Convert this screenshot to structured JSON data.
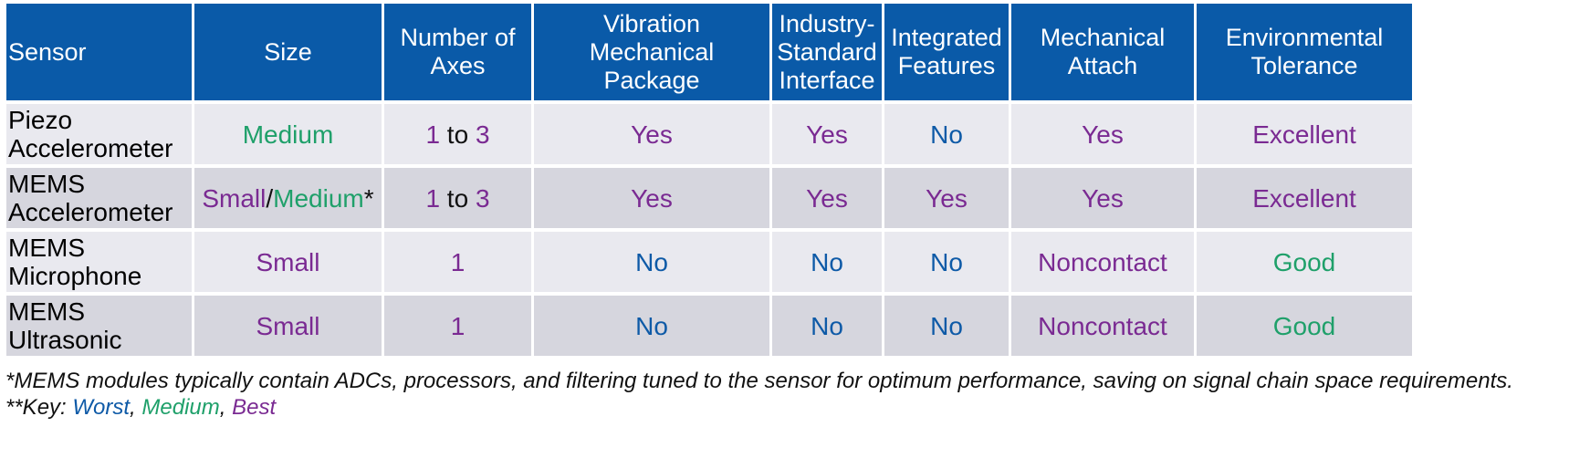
{
  "colors": {
    "header_bg": "#0a5aa8",
    "worst": "#0e5aa7",
    "medium": "#1fa06a",
    "best": "#7a2a92",
    "row_light": "#e9e9ef",
    "row_dark": "#d6d6de"
  },
  "header": {
    "sensor": "Sensor",
    "size": "Size",
    "axes_1": "Number of",
    "axes_2": "Axes",
    "vib_1": "Vibration Mechanical",
    "vib_2": "Package",
    "iface_1": "Industry-",
    "iface_2": "Standard",
    "iface_3": "Interface",
    "feat_1": "Integrated",
    "feat_2": "Features",
    "attach_1": "Mechanical",
    "attach_2": "Attach",
    "env_1": "Environmental",
    "env_2": "Tolerance"
  },
  "rows": [
    {
      "sensor_1": "Piezo",
      "sensor_2": "Accelerometer",
      "size_a": "Medium",
      "size_sep": "",
      "size_b": "",
      "size_star": "",
      "axes_a": "1",
      "axes_to": " to ",
      "axes_b": "3",
      "vib": "Yes",
      "iface": "Yes",
      "feat": "No",
      "attach": "Yes",
      "env": "Excellent"
    },
    {
      "sensor_1": "MEMS",
      "sensor_2": "Accelerometer",
      "size_a": "Small",
      "size_sep": "/",
      "size_b": "Medium",
      "size_star": "*",
      "axes_a": "1",
      "axes_to": " to ",
      "axes_b": "3",
      "vib": "Yes",
      "iface": "Yes",
      "feat": "Yes",
      "attach": "Yes",
      "env": "Excellent"
    },
    {
      "sensor_1": "MEMS",
      "sensor_2": "Microphone",
      "size_a": "Small",
      "size_sep": "",
      "size_b": "",
      "size_star": "",
      "axes_a": "1",
      "axes_to": "",
      "axes_b": "",
      "vib": "No",
      "iface": "No",
      "feat": "No",
      "attach": "Noncontact",
      "env": "Good"
    },
    {
      "sensor_1": "MEMS",
      "sensor_2": "Ultrasonic",
      "size_a": "Small",
      "size_sep": "",
      "size_b": "",
      "size_star": "",
      "axes_a": "1",
      "axes_to": "",
      "axes_b": "",
      "vib": "No",
      "iface": "No",
      "feat": "No",
      "attach": "Noncontact",
      "env": "Good"
    }
  ],
  "notes": {
    "footnote": "*MEMS modules typically contain ADCs, processors, and filtering tuned to the sensor for optimum performance, saving on signal chain space requirements.",
    "key_prefix": "**Key: ",
    "key_worst": "Worst",
    "key_comma1": ", ",
    "key_medium": "Medium",
    "key_comma2": ", ",
    "key_best": "Best"
  }
}
